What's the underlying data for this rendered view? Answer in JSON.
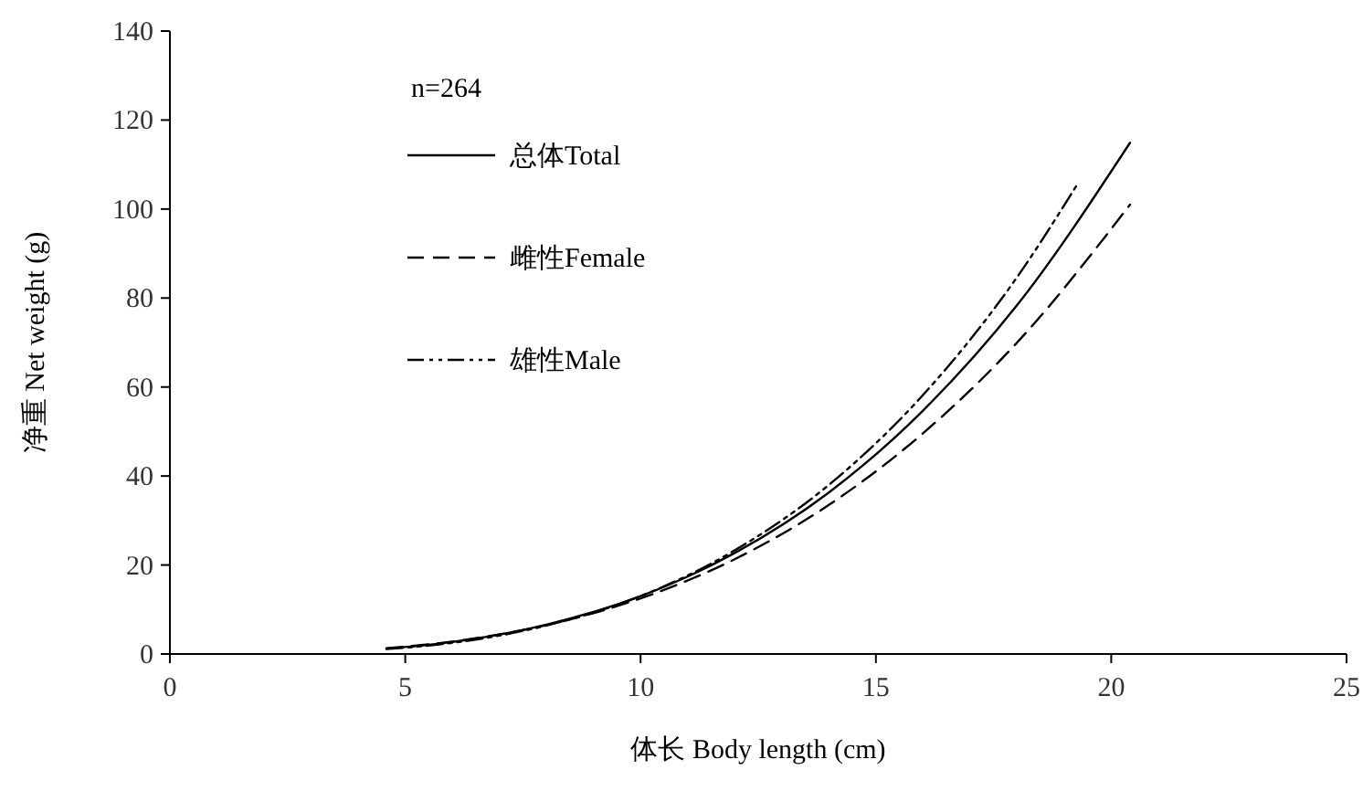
{
  "chart_data": {
    "type": "line",
    "xlabel": "体长  Body length (cm)",
    "ylabel": "净重  Net weight (g)",
    "annotations": [
      "n=264"
    ],
    "xlim": [
      0,
      25
    ],
    "xticks": [
      0,
      5,
      10,
      15,
      20,
      25
    ],
    "ylim": [
      0,
      140
    ],
    "yticks": [
      0,
      20,
      40,
      60,
      80,
      100,
      120,
      140
    ],
    "grid": false,
    "legend": "top left",
    "series": [
      {
        "name": "总体Total",
        "color": "#000000",
        "line_style": "solid",
        "x": [
          4.6,
          6,
          8,
          10,
          12,
          14,
          16,
          18,
          20.4
        ],
        "values": [
          1.2,
          2.7,
          6.6,
          13.0,
          22.7,
          36.3,
          54.7,
          78.4,
          114.9
        ]
      },
      {
        "name": "雌性Female",
        "color": "#000000",
        "line_style": "dashed",
        "x": [
          4.6,
          6,
          8,
          10,
          12,
          14,
          16,
          18,
          20.4
        ],
        "values": [
          1.3,
          2.8,
          6.5,
          12.5,
          21.3,
          33.5,
          49.6,
          70.0,
          101.0
        ]
      },
      {
        "name": "雄性Male",
        "color": "#000000",
        "line_style": "dashdot",
        "x": [
          4.6,
          6,
          8,
          10,
          12,
          14,
          16,
          18,
          19.3
        ],
        "values": [
          1.1,
          2.5,
          6.4,
          13.0,
          23.3,
          38.0,
          58.2,
          84.7,
          105.9
        ]
      }
    ]
  }
}
